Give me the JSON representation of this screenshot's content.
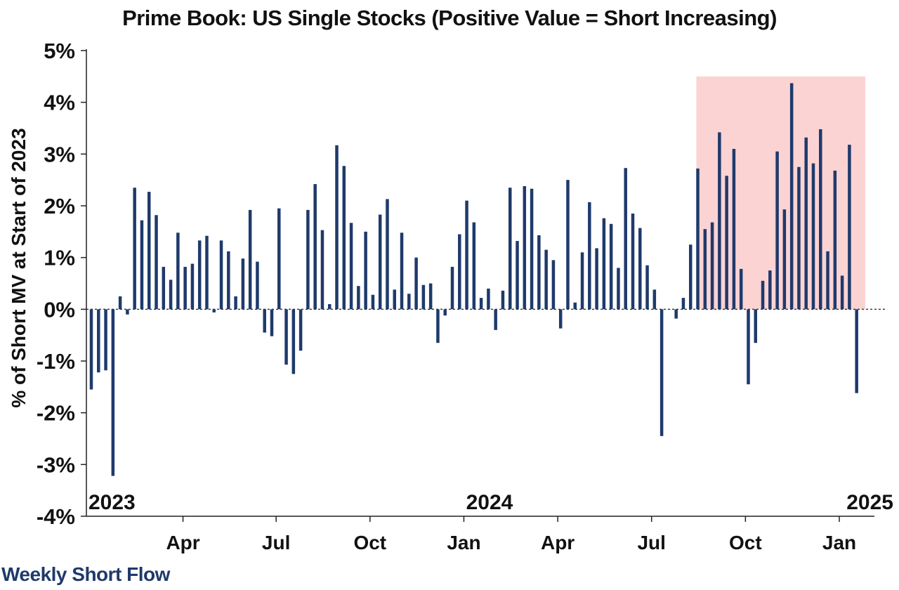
{
  "chart_data": {
    "type": "bar",
    "title": "Prime Book: US Single Stocks (Positive Value = Short Increasing)",
    "ylabel": "% of Short MV at Start of 2023",
    "ylim": [
      -4,
      5
    ],
    "yticks": [
      "5%",
      "4%",
      "3%",
      "2%",
      "1%",
      "0%",
      "-1%",
      "-2%",
      "-3%",
      "-4%"
    ],
    "ytick_values": [
      5,
      4,
      3,
      2,
      1,
      0,
      -1,
      -2,
      -3,
      -4
    ],
    "xtick_labels": [
      "Apr",
      "Jul",
      "Oct",
      "Jan",
      "Apr",
      "Jul",
      "Oct",
      "Jan"
    ],
    "xtick_weeks": [
      12.7,
      25.6,
      38.6,
      51.6,
      64.6,
      77.6,
      90.6,
      103.6
    ],
    "year_labels": [
      "2023",
      "2024",
      "2025"
    ],
    "highlight_weeks": [
      83.8,
      107.2
    ],
    "highlight_top": 4.5,
    "highlight_color": "#fbd3d3",
    "bar_color": "#1f3a6b",
    "series": [
      {
        "values": [
          -1.55,
          -1.22,
          -1.18,
          -3.22,
          0.25,
          -0.1,
          2.35,
          1.72,
          2.27,
          1.82,
          0.82,
          0.57,
          1.48,
          0.82,
          0.88,
          1.33,
          1.42,
          -0.06,
          1.33,
          1.12,
          0.25,
          0.98,
          1.92,
          0.92,
          -0.45,
          -0.52,
          1.95,
          -1.07,
          -1.25,
          -0.8,
          1.92,
          2.42,
          1.53,
          0.1,
          3.17,
          2.77,
          1.67,
          0.45,
          1.5,
          0.28,
          1.83,
          2.13,
          0.38,
          1.48,
          0.3,
          1.0,
          0.47,
          0.5,
          -0.65,
          -0.12,
          0.82,
          1.45,
          2.1,
          1.68,
          0.22,
          0.4,
          -0.4,
          0.36,
          2.35,
          1.32,
          2.38,
          2.33,
          1.43,
          1.15,
          0.95,
          -0.37,
          2.5,
          0.13,
          1.1,
          2.07,
          1.18,
          1.76,
          1.65,
          0.8,
          2.73,
          1.85,
          1.57,
          0.85,
          0.38,
          -2.45,
          0.0,
          -0.18,
          0.22,
          1.25,
          2.72,
          1.55,
          1.68,
          3.42,
          2.58,
          3.1,
          0.78,
          -1.45,
          -0.65,
          0.55,
          0.75,
          3.05,
          1.93,
          4.37,
          2.75,
          3.32,
          2.82,
          3.48,
          1.12,
          2.68,
          0.65,
          3.18,
          -1.62
        ]
      }
    ]
  },
  "footer_label": "Weekly Short Flow"
}
